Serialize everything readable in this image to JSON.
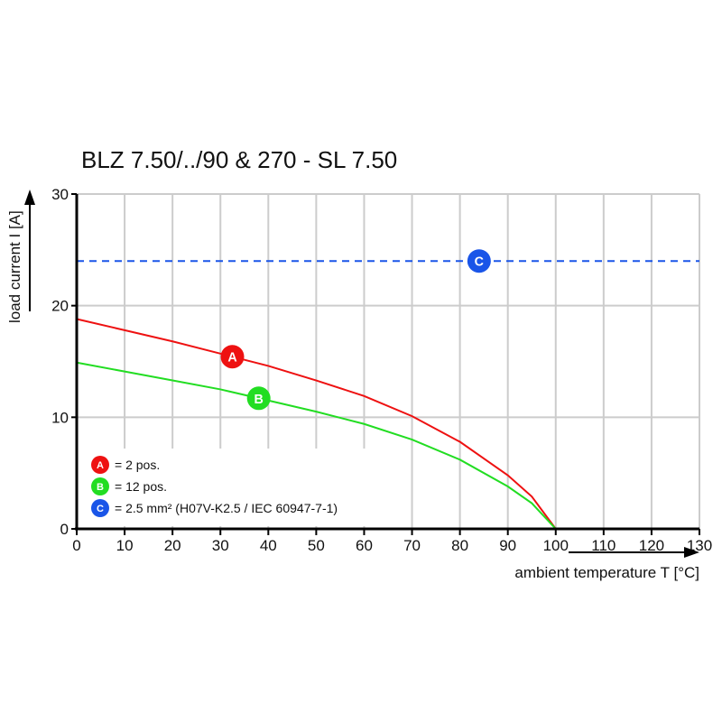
{
  "chart_data": {
    "type": "line",
    "title": "BLZ 7.50/../90 & 270 - SL 7.50",
    "xlabel": "ambient temperature T [°C]",
    "ylabel": "load current I [A]",
    "xlim": [
      0,
      130
    ],
    "ylim": [
      0,
      30
    ],
    "xticks": [
      0,
      10,
      20,
      30,
      40,
      50,
      60,
      70,
      80,
      90,
      100,
      110,
      120,
      130
    ],
    "yticks": [
      0,
      10,
      20,
      30
    ],
    "grid": true,
    "legend_placement": "bottom-left",
    "series": [
      {
        "name": "A",
        "legend": "= 2 pos.",
        "color": "#ee1111",
        "style": "solid",
        "marker_x": 32.5,
        "x": [
          0,
          10,
          20,
          30,
          40,
          50,
          60,
          70,
          80,
          90,
          95,
          100
        ],
        "y": [
          18.8,
          17.8,
          16.8,
          15.7,
          14.6,
          13.3,
          11.9,
          10.1,
          7.8,
          4.8,
          2.9,
          0
        ]
      },
      {
        "name": "B",
        "legend": "= 12 pos.",
        "color": "#22dd22",
        "style": "solid",
        "marker_x": 38,
        "x": [
          0,
          10,
          20,
          30,
          40,
          50,
          60,
          70,
          80,
          90,
          95,
          100
        ],
        "y": [
          14.9,
          14.1,
          13.3,
          12.5,
          11.5,
          10.5,
          9.4,
          8.0,
          6.2,
          3.8,
          2.3,
          0
        ]
      },
      {
        "name": "C",
        "legend": "= 2.5 mm² (H07V-K2.5 / IEC 60947-7-1)",
        "color": "#1a55e8",
        "style": "dashed",
        "marker_x": 84,
        "x": [
          0,
          130
        ],
        "y": [
          24,
          24
        ]
      }
    ]
  }
}
